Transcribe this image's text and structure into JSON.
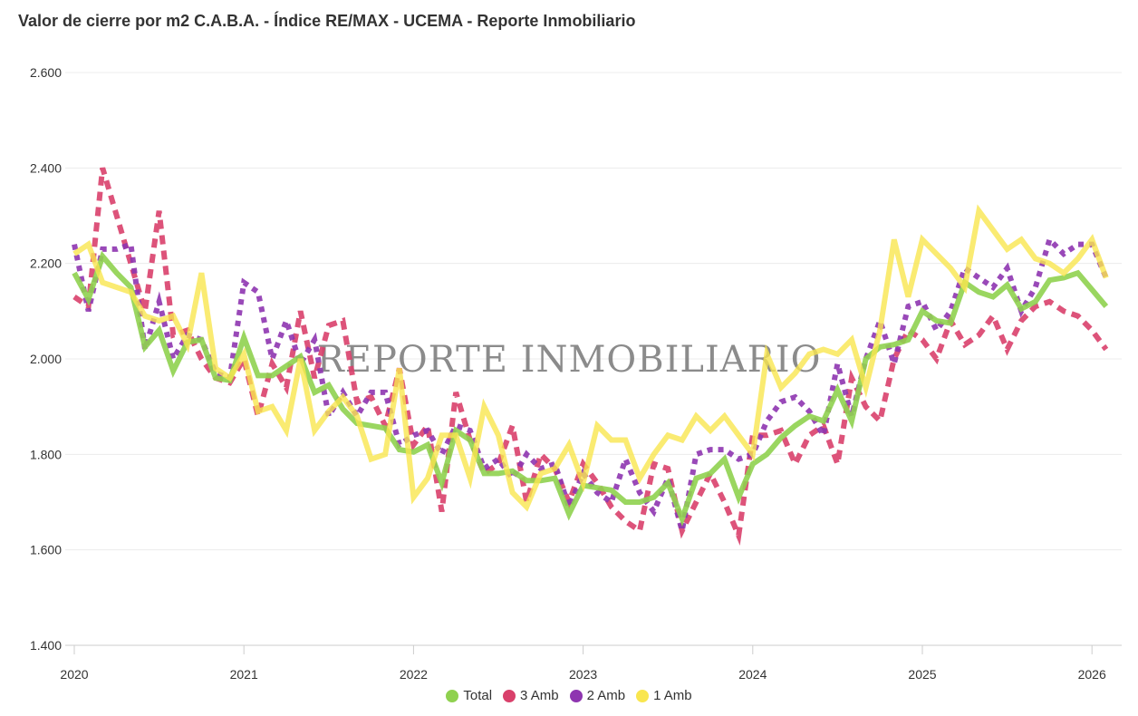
{
  "title": "Valor de cierre por m2 C.A.B.A. - Índice RE/MAX - UCEMA - Reporte Inmobiliario",
  "watermark": "REPORTE INMOBILIARIO",
  "chart_data": {
    "type": "line",
    "title": "Valor de cierre por m2 C.A.B.A. - Índice RE/MAX - UCEMA - Reporte Inmobiliario",
    "x_start": "2020-01",
    "x_frequency": "monthly",
    "xlim": [
      "2020-01",
      "2026-02"
    ],
    "x_ticks": [
      "2020",
      "2021",
      "2022",
      "2023",
      "2024",
      "2025",
      "2026"
    ],
    "ylim": [
      1400,
      2600
    ],
    "y_ticks": [
      "1.400",
      "1.600",
      "1.800",
      "2.000",
      "2.200",
      "2.400",
      "2.600"
    ],
    "grid": true,
    "legend_placement": "bottom",
    "series": [
      {
        "name": "Total",
        "color": "#8fd14f",
        "style": "solid",
        "values": [
          2180,
          2125,
          2215,
          2180,
          2150,
          2025,
          2060,
          1975,
          2035,
          2040,
          1960,
          1955,
          2045,
          1965,
          1965,
          1985,
          2005,
          1930,
          1945,
          1895,
          1865,
          1860,
          1855,
          1810,
          1805,
          1820,
          1740,
          1850,
          1830,
          1760,
          1760,
          1765,
          1745,
          1745,
          1750,
          1675,
          1735,
          1730,
          1725,
          1700,
          1700,
          1710,
          1740,
          1665,
          1750,
          1760,
          1790,
          1710,
          1780,
          1800,
          1835,
          1860,
          1880,
          1870,
          1935,
          1870,
          2000,
          2025,
          2030,
          2040,
          2100,
          2080,
          2075,
          2160,
          2140,
          2130,
          2155,
          2105,
          2120,
          2165,
          2170,
          2180,
          2145,
          2110
        ]
      },
      {
        "name": "3 Amb",
        "color": "#d9406b",
        "style": "dashed",
        "values": [
          2130,
          2110,
          2400,
          2300,
          2200,
          2100,
          2310,
          2050,
          2060,
          2000,
          1960,
          1950,
          2000,
          1880,
          1990,
          1940,
          2100,
          1960,
          2070,
          2080,
          1910,
          1920,
          1860,
          1980,
          1820,
          1860,
          1680,
          1930,
          1830,
          1760,
          1780,
          1860,
          1700,
          1800,
          1770,
          1700,
          1780,
          1740,
          1690,
          1660,
          1640,
          1780,
          1770,
          1640,
          1700,
          1760,
          1700,
          1630,
          1840,
          1840,
          1850,
          1780,
          1840,
          1860,
          1780,
          1960,
          1900,
          1870,
          2000,
          2060,
          2040,
          2000,
          2080,
          2030,
          2050,
          2090,
          2020,
          2080,
          2110,
          2120,
          2100,
          2090,
          2060,
          2020
        ]
      },
      {
        "name": "2 Amb",
        "color": "#8e35b0",
        "style": "dotted",
        "values": [
          2240,
          2100,
          2230,
          2230,
          2240,
          2020,
          2120,
          2000,
          2050,
          2040,
          1970,
          1960,
          2160,
          2140,
          2000,
          2080,
          1990,
          2040,
          1880,
          1930,
          1880,
          1930,
          1930,
          1820,
          1840,
          1850,
          1800,
          1860,
          1850,
          1770,
          1790,
          1750,
          1800,
          1770,
          1780,
          1690,
          1760,
          1720,
          1700,
          1790,
          1720,
          1680,
          1750,
          1640,
          1800,
          1810,
          1810,
          1790,
          1800,
          1870,
          1910,
          1920,
          1890,
          1840,
          1990,
          1880,
          2000,
          2080,
          1990,
          2110,
          2120,
          2060,
          2100,
          2190,
          2170,
          2150,
          2190,
          2100,
          2150,
          2250,
          2220,
          2240,
          2240,
          2170
        ]
      },
      {
        "name": "1 Amb",
        "color": "#f9e64f",
        "style": "solid",
        "values": [
          2220,
          2240,
          2160,
          2150,
          2140,
          2090,
          2080,
          2090,
          2030,
          2180,
          1980,
          1960,
          2010,
          1890,
          1900,
          1850,
          2000,
          1850,
          1890,
          1920,
          1880,
          1790,
          1800,
          1980,
          1710,
          1750,
          1840,
          1840,
          1750,
          1900,
          1840,
          1720,
          1690,
          1760,
          1770,
          1820,
          1740,
          1860,
          1830,
          1830,
          1750,
          1800,
          1840,
          1830,
          1880,
          1850,
          1880,
          1840,
          1800,
          2010,
          1940,
          1970,
          2010,
          2020,
          2010,
          2040,
          1940,
          2060,
          2250,
          2130,
          2250,
          2220,
          2190,
          2150,
          2310,
          2270,
          2230,
          2250,
          2210,
          2200,
          2180,
          2210,
          2250,
          2170
        ]
      }
    ]
  }
}
